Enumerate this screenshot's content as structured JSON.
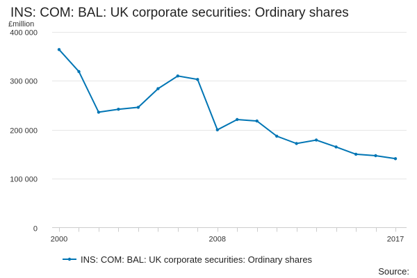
{
  "chart_data": {
    "type": "line",
    "title": "INS: COM: BAL: UK corporate securities: Ordinary shares",
    "unit_label": "£million",
    "xlabel": "",
    "ylabel": "",
    "ylim": [
      0,
      400000
    ],
    "yticks": [
      0,
      100000,
      200000,
      300000,
      400000
    ],
    "ytick_labels": [
      "0",
      "100 000",
      "200 000",
      "300 000",
      "400 000"
    ],
    "xlim": [
      2000,
      2017
    ],
    "xticks": [
      2000,
      2001,
      2002,
      2003,
      2004,
      2005,
      2006,
      2007,
      2008,
      2009,
      2010,
      2011,
      2012,
      2013,
      2014,
      2015,
      2016,
      2017
    ],
    "xtick_labels": [
      {
        "x": 2000,
        "label": "2000"
      },
      {
        "x": 2008,
        "label": "2008"
      },
      {
        "x": 2017,
        "label": "2017"
      }
    ],
    "grid": "horizontal",
    "legend_position": "bottom",
    "series": [
      {
        "name": "INS: COM: BAL: UK corporate securities: Ordinary shares",
        "color": "#0075b4",
        "x": [
          2000,
          2001,
          2002,
          2003,
          2004,
          2005,
          2006,
          2007,
          2008,
          2009,
          2010,
          2011,
          2012,
          2013,
          2014,
          2015,
          2016,
          2017
        ],
        "values": [
          364000,
          319000,
          236000,
          242000,
          246000,
          284000,
          310000,
          303000,
          200000,
          221000,
          218000,
          187000,
          172000,
          179000,
          165000,
          150000,
          147000,
          141000
        ]
      }
    ]
  },
  "source_label": "Source:"
}
